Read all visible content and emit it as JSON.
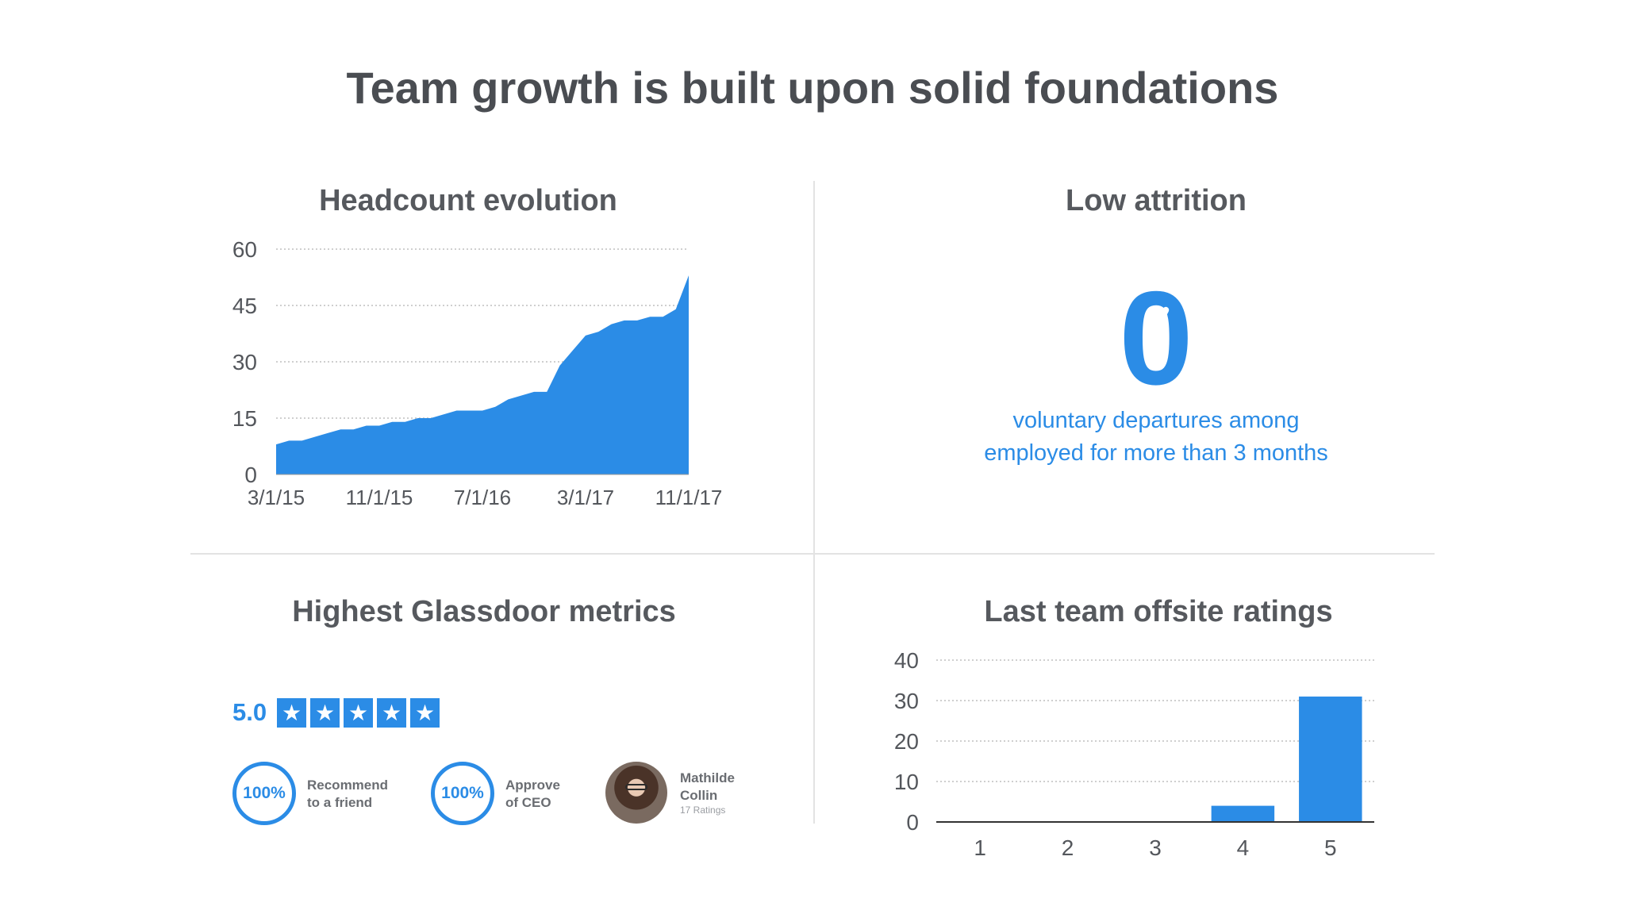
{
  "title": "Team growth is built upon solid foundations",
  "panels": {
    "headcount": {
      "title": "Headcount evolution"
    },
    "attrition": {
      "title": "Low attrition",
      "value": "0",
      "line1": "voluntary departures among",
      "line2": "employed for more than 3 months"
    },
    "glassdoor": {
      "title": "Highest Glassdoor metrics",
      "rating": "5.0",
      "star_count": 5,
      "recommend": {
        "value": "100%",
        "line1": "Recommend",
        "line2": "to a friend"
      },
      "approve": {
        "value": "100%",
        "line1": "Approve",
        "line2": "of CEO"
      },
      "ceo": {
        "first": "Mathilde",
        "last": "Collin",
        "ratings": "17 Ratings"
      }
    },
    "offsite": {
      "title": "Last team offsite ratings"
    }
  },
  "colors": {
    "accent": "#2b8ce6",
    "text": "#54575c",
    "grid": "#bfbfbf"
  },
  "chart_data": [
    {
      "type": "area",
      "title": "Headcount evolution",
      "x_tick_labels": [
        "3/1/15",
        "11/1/15",
        "7/1/16",
        "3/1/17",
        "11/1/17"
      ],
      "y_ticks": [
        0,
        15,
        30,
        45,
        60
      ],
      "ylim": [
        0,
        60
      ],
      "grid": true,
      "x_months": [
        "2015-03",
        "2015-04",
        "2015-05",
        "2015-06",
        "2015-07",
        "2015-08",
        "2015-09",
        "2015-10",
        "2015-11",
        "2015-12",
        "2016-01",
        "2016-02",
        "2016-03",
        "2016-04",
        "2016-05",
        "2016-06",
        "2016-07",
        "2016-08",
        "2016-09",
        "2016-10",
        "2016-11",
        "2016-12",
        "2017-01",
        "2017-02",
        "2017-03",
        "2017-04",
        "2017-05",
        "2017-06",
        "2017-07",
        "2017-08",
        "2017-09",
        "2017-10",
        "2017-11"
      ],
      "values": [
        8,
        9,
        9,
        10,
        11,
        12,
        12,
        13,
        13,
        14,
        14,
        15,
        15,
        16,
        17,
        17,
        17,
        18,
        20,
        21,
        22,
        22,
        29,
        33,
        37,
        38,
        40,
        41,
        41,
        42,
        42,
        44,
        53
      ]
    },
    {
      "type": "bar",
      "title": "Last team offsite ratings",
      "categories": [
        "1",
        "2",
        "3",
        "4",
        "5"
      ],
      "values": [
        0,
        0,
        0,
        4,
        31
      ],
      "y_ticks": [
        0,
        10,
        20,
        30,
        40
      ],
      "ylim": [
        0,
        40
      ],
      "grid": true
    }
  ]
}
